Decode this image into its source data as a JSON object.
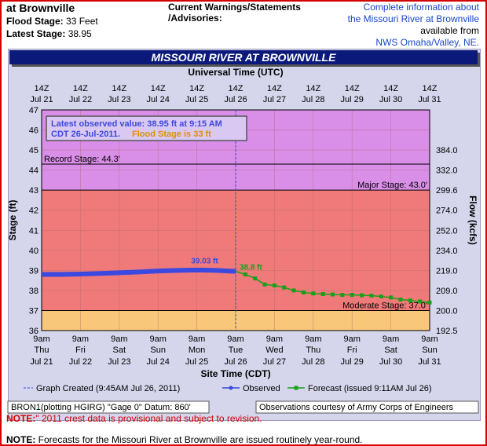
{
  "header": {
    "title": "at Brownville",
    "flood_stage_label": "Flood Stage:",
    "flood_stage_value": "33 Feet",
    "latest_stage_label": "Latest Stage:",
    "latest_stage_value": "38.95",
    "warnings_line1": "Current Warnings/Statements",
    "warnings_line2": "/Advisories:",
    "info_line1": "Complete information about",
    "info_line2": "the Missouri River at Brownville",
    "info_line3": "available from",
    "info_line4": "NWS Omaha/Valley, NE."
  },
  "chart_data": {
    "type": "line",
    "title": "MISSOURI RIVER AT BROWNVILLE",
    "top_axis_title": "Universal Time (UTC)",
    "xlabel": "Site Time (CDT)",
    "ylabel": "Stage (ft)",
    "y2label": "Flow (kcfs)",
    "ylim": [
      36,
      47
    ],
    "y_ticks": [
      "47",
      "46",
      "45",
      "44",
      "43",
      "42",
      "41",
      "40",
      "39",
      "38",
      "37",
      "36"
    ],
    "flow_ticks": [
      {
        "stage": 45,
        "label": "384.0"
      },
      {
        "stage": 44,
        "label": "332.0"
      },
      {
        "stage": 43,
        "label": "299.6"
      },
      {
        "stage": 42,
        "label": "274.0"
      },
      {
        "stage": 41,
        "label": "252.0"
      },
      {
        "stage": 40,
        "label": "234.0"
      },
      {
        "stage": 39,
        "label": "219.0"
      },
      {
        "stage": 38,
        "label": "209.0"
      },
      {
        "stage": 37,
        "label": "200.0"
      },
      {
        "stage": 36,
        "label": "192.5"
      }
    ],
    "utc_ticks": [
      {
        "time": "14Z",
        "date": "Jul 21"
      },
      {
        "time": "14Z",
        "date": "Jul 22"
      },
      {
        "time": "14Z",
        "date": "Jul 23"
      },
      {
        "time": "14Z",
        "date": "Jul 24"
      },
      {
        "time": "14Z",
        "date": "Jul 25"
      },
      {
        "time": "14Z",
        "date": "Jul 26"
      },
      {
        "time": "14Z",
        "date": "Jul 27"
      },
      {
        "time": "14Z",
        "date": "Jul 28"
      },
      {
        "time": "14Z",
        "date": "Jul 29"
      },
      {
        "time": "14Z",
        "date": "Jul 30"
      },
      {
        "time": "14Z",
        "date": "Jul 31"
      }
    ],
    "local_ticks": [
      {
        "time": "9am",
        "dow": "Thu",
        "date": "Jul 21"
      },
      {
        "time": "9am",
        "dow": "Fri",
        "date": "Jul 22"
      },
      {
        "time": "9am",
        "dow": "Sat",
        "date": "Jul 23"
      },
      {
        "time": "9am",
        "dow": "Sun",
        "date": "Jul 24"
      },
      {
        "time": "9am",
        "dow": "Mon",
        "date": "Jul 25"
      },
      {
        "time": "9am",
        "dow": "Tue",
        "date": "Jul 26"
      },
      {
        "time": "9am",
        "dow": "Wed",
        "date": "Jul 27"
      },
      {
        "time": "9am",
        "dow": "Thu",
        "date": "Jul 28"
      },
      {
        "time": "9am",
        "dow": "Fri",
        "date": "Jul 29"
      },
      {
        "time": "9am",
        "dow": "Sat",
        "date": "Jul 30"
      },
      {
        "time": "9am",
        "dow": "Sun",
        "date": "Jul 31"
      }
    ],
    "bands": [
      {
        "from": 36,
        "to": 37,
        "color": "#f8c77a"
      },
      {
        "from": 37,
        "to": 43,
        "color": "#f07a7a"
      },
      {
        "from": 43,
        "to": 47,
        "color": "#d98ee8"
      }
    ],
    "stage_lines": [
      {
        "value": 44.3,
        "label": "Record Stage: 44.3'",
        "align": "left"
      },
      {
        "value": 43.0,
        "label": "Major Stage: 43.0'",
        "align": "right"
      },
      {
        "value": 37.0,
        "label": "Moderate Stage: 37.0'",
        "align": "right"
      }
    ],
    "observed": {
      "name": "Observed",
      "color": "#3b49e0",
      "x": [
        0,
        0.5,
        1,
        1.5,
        2,
        2.5,
        3,
        3.5,
        4,
        4.5,
        5.01
      ],
      "y": [
        38.8,
        38.8,
        38.82,
        38.85,
        38.88,
        38.92,
        38.97,
        39.0,
        39.02,
        39.0,
        38.95
      ]
    },
    "forecast": {
      "name": "Forecast (issued 9:11AM Jul 26)",
      "color": "#19a019",
      "x": [
        5.0,
        5.25,
        5.5,
        5.75,
        6.0,
        6.25,
        6.5,
        6.75,
        7.0,
        7.25,
        7.5,
        7.75,
        8.0,
        8.25,
        8.5,
        8.75,
        9.0,
        9.25,
        9.5,
        9.75,
        10.0
      ],
      "y": [
        38.95,
        38.8,
        38.6,
        38.3,
        38.25,
        38.15,
        38.0,
        37.9,
        37.85,
        37.82,
        37.8,
        37.78,
        37.78,
        37.76,
        37.74,
        37.7,
        37.65,
        37.55,
        37.5,
        37.45,
        37.4
      ]
    },
    "annotations": {
      "observed_peak": "39.03 ft",
      "forecast_peak": "38.8 ft",
      "latest_box_line1": "Latest observed value: 38.95 ft at 9:15 AM",
      "latest_box_line2": "CDT 26-Jul-2011.",
      "latest_box_flood": "Flood Stage is 33 ft"
    },
    "legend": {
      "created": "Graph Created (9:45AM Jul 26, 2011)",
      "observed": "Observed",
      "forecast": "Forecast (issued 9:11AM Jul 26)"
    },
    "datum": "BRON1(plotting HGIRG) \"Gage 0\" Datum: 860'",
    "courtesy": "Observations courtesy of Army Corps of Engineers"
  },
  "notes": {
    "note1_label": "NOTE:",
    "note1_text": "\" 2011 crest data is provisional and subject to revision.",
    "note2_label": "NOTE:",
    "note2_text": " Forecasts for the Missouri River at Brownville are issued routinely year-round."
  },
  "colors": {
    "banner": "#0b1a7a",
    "link": "#1a47c8",
    "frame": "#d40000"
  }
}
